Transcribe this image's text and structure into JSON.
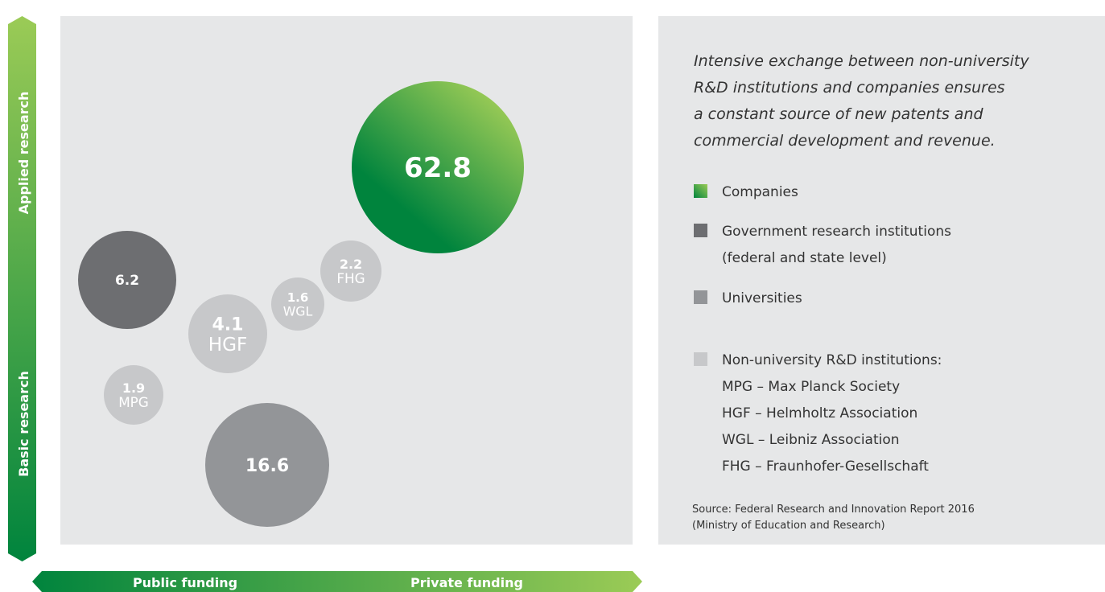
{
  "axes": {
    "y_top": "Applied research",
    "y_bottom": "Basic research",
    "x_left": "Public funding",
    "x_right": "Private funding"
  },
  "bubbles": [
    {
      "value": 62.8
    },
    {
      "value": 6.2
    },
    {
      "value": 2.2,
      "label": "FHG"
    },
    {
      "value": 1.6,
      "label": "WGL"
    },
    {
      "value": 4.1,
      "label": "HGF"
    },
    {
      "value": 1.9,
      "label": "MPG"
    },
    {
      "value": 16.6
    }
  ],
  "description": [
    "Intensive exchange between non-university",
    "R&D institutions and companies ensures",
    "a constant source of new patents and",
    "commercial development and revenue."
  ],
  "legend": [
    {
      "lines": [
        "Companies"
      ]
    },
    {
      "lines": [
        "Government research institutions",
        "(federal and state level)"
      ]
    },
    {
      "lines": [
        "Universities"
      ]
    },
    {
      "lines": [
        "Non-university R&D institutions:",
        "MPG – Max Planck Society",
        "HGF – Helmholtz Association",
        "WGL – Leibniz Association",
        "FHG – Fraunhofer-Gesellschaft"
      ]
    }
  ],
  "source": [
    "Source: Federal Research and Innovation Report 2016",
    "(Ministry of Education and Research)"
  ]
}
